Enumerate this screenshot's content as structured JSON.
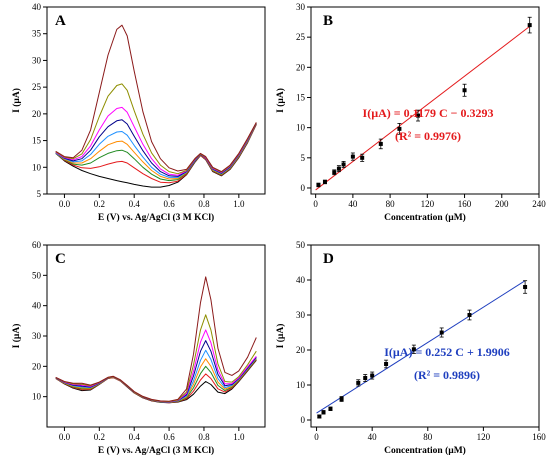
{
  "figure": {
    "panels": [
      "A",
      "B",
      "C",
      "D"
    ]
  },
  "chart_data": [
    {
      "panel": "A",
      "type": "line",
      "xlabel": "E (V) vs. Ag/AgCl (3 M KCl)",
      "ylabel": "I (µA)",
      "xlim": [
        -0.1,
        1.15
      ],
      "ylim": [
        5,
        40
      ],
      "xticks": [
        0.0,
        0.2,
        0.4,
        0.6,
        0.8,
        1.0
      ],
      "yticks": [
        5,
        10,
        15,
        20,
        25,
        30,
        35,
        40
      ],
      "x": [
        -0.05,
        0.0,
        0.05,
        0.1,
        0.15,
        0.2,
        0.25,
        0.3,
        0.33,
        0.36,
        0.4,
        0.45,
        0.5,
        0.55,
        0.6,
        0.65,
        0.7,
        0.75,
        0.78,
        0.81,
        0.85,
        0.9,
        0.95,
        1.0,
        1.05,
        1.1
      ],
      "series": [
        {
          "color": "#000000",
          "values": [
            12.6,
            11.2,
            10.2,
            9.4,
            8.8,
            8.3,
            7.9,
            7.5,
            7.3,
            7.1,
            6.8,
            6.5,
            6.3,
            6.3,
            6.6,
            7.2,
            8.6,
            11.0,
            12.2,
            11.4,
            9.2,
            8.4,
            9.6,
            11.8,
            14.6,
            18.0
          ]
        },
        {
          "color": "#e41a1c",
          "values": [
            12.6,
            11.3,
            10.4,
            9.9,
            9.8,
            10.1,
            10.6,
            11.0,
            11.1,
            10.8,
            9.9,
            8.8,
            7.9,
            7.2,
            7.1,
            7.4,
            8.7,
            11.1,
            12.2,
            11.5,
            9.3,
            8.5,
            9.7,
            11.9,
            14.7,
            18.0
          ]
        },
        {
          "color": "#228b22",
          "values": [
            12.6,
            11.4,
            10.6,
            10.4,
            10.8,
            11.8,
            12.6,
            13.1,
            13.2,
            12.8,
            11.6,
            10.0,
            8.7,
            7.8,
            7.5,
            7.7,
            8.9,
            11.2,
            12.3,
            11.6,
            9.4,
            8.6,
            9.8,
            12.0,
            14.8,
            18.1
          ]
        },
        {
          "color": "#ff8c00",
          "values": [
            12.7,
            11.5,
            10.8,
            10.8,
            11.6,
            13.0,
            14.2,
            14.8,
            14.9,
            14.3,
            12.8,
            11.0,
            9.4,
            8.3,
            7.8,
            7.9,
            9.0,
            11.3,
            12.3,
            11.6,
            9.5,
            8.7,
            9.9,
            12.1,
            14.9,
            18.1
          ]
        },
        {
          "color": "#1e90ff",
          "values": [
            12.7,
            11.6,
            11.0,
            11.2,
            12.4,
            14.3,
            15.8,
            16.6,
            16.7,
            16.0,
            14.1,
            11.9,
            10.0,
            8.7,
            8.1,
            8.1,
            9.1,
            11.3,
            12.4,
            11.7,
            9.6,
            8.8,
            10.0,
            12.2,
            15.0,
            18.2
          ]
        },
        {
          "color": "#00008b",
          "values": [
            12.8,
            11.7,
            11.2,
            11.6,
            13.2,
            15.7,
            17.6,
            18.7,
            18.9,
            18.1,
            15.8,
            13.1,
            10.8,
            9.2,
            8.4,
            8.3,
            9.2,
            11.4,
            12.4,
            11.7,
            9.7,
            8.9,
            10.1,
            12.3,
            15.1,
            18.2
          ]
        },
        {
          "color": "#ff00ff",
          "values": [
            12.8,
            11.8,
            11.4,
            12.0,
            14.0,
            17.0,
            19.6,
            21.0,
            21.2,
            20.3,
            17.6,
            14.3,
            11.6,
            9.7,
            8.7,
            8.5,
            9.3,
            11.5,
            12.5,
            11.8,
            9.8,
            9.0,
            10.2,
            12.4,
            15.2,
            18.3
          ]
        },
        {
          "color": "#8e8e00",
          "values": [
            12.9,
            11.9,
            11.6,
            12.5,
            15.2,
            19.5,
            23.3,
            25.3,
            25.6,
            24.4,
            20.6,
            16.2,
            12.7,
            10.4,
            9.2,
            8.8,
            9.4,
            11.6,
            12.5,
            11.9,
            9.9,
            9.1,
            10.3,
            12.5,
            15.3,
            18.3
          ]
        },
        {
          "color": "#8b1a1a",
          "values": [
            13.0,
            12.0,
            11.8,
            13.2,
            17.0,
            24.0,
            31.0,
            35.8,
            36.6,
            34.6,
            28.0,
            20.4,
            14.8,
            11.6,
            9.9,
            9.3,
            9.6,
            11.7,
            12.6,
            12.0,
            10.0,
            9.2,
            10.4,
            12.6,
            15.4,
            18.4
          ]
        }
      ]
    },
    {
      "panel": "B",
      "type": "scatter",
      "xlabel": "Concentration (µM)",
      "ylabel": "I (µA)",
      "xlim": [
        -5,
        240
      ],
      "ylim": [
        -1,
        30
      ],
      "xticks": [
        0,
        40,
        80,
        120,
        160,
        200,
        240
      ],
      "yticks": [
        0,
        5,
        10,
        15,
        20,
        25,
        30
      ],
      "x": [
        3,
        10,
        20,
        25,
        30,
        40,
        50,
        70,
        90,
        110,
        160,
        230
      ],
      "y": [
        0.5,
        1.0,
        2.6,
        3.2,
        3.9,
        5.2,
        5.0,
        7.3,
        9.8,
        12.0,
        16.2,
        27.0
      ],
      "err": [
        0.3,
        0.3,
        0.4,
        0.5,
        0.5,
        0.6,
        0.6,
        0.8,
        0.9,
        0.9,
        1.0,
        1.3
      ],
      "fit": {
        "slope": 0.1179,
        "intercept": -0.3293,
        "color": "#e41a1c"
      },
      "equation": "I(µA) = 0.1179 C − 0.3293",
      "r2": "(R² = 0.9976)"
    },
    {
      "panel": "C",
      "type": "line",
      "xlabel": "E (V) vs. Ag/AgCl (3 M KCl)",
      "ylabel": "I (µA)",
      "xlim": [
        -0.1,
        1.15
      ],
      "ylim": [
        0,
        60
      ],
      "xticks": [
        0.0,
        0.2,
        0.4,
        0.6,
        0.8,
        1.0
      ],
      "yticks": [
        10,
        20,
        30,
        40,
        50,
        60
      ],
      "x": [
        -0.05,
        0.0,
        0.05,
        0.1,
        0.15,
        0.2,
        0.25,
        0.28,
        0.32,
        0.36,
        0.4,
        0.45,
        0.5,
        0.55,
        0.6,
        0.65,
        0.7,
        0.74,
        0.78,
        0.81,
        0.84,
        0.88,
        0.92,
        0.96,
        1.0,
        1.05,
        1.1
      ],
      "series": [
        {
          "color": "#000000",
          "values": [
            16.0,
            14.2,
            12.8,
            12.0,
            12.2,
            14.0,
            16.0,
            16.3,
            15.2,
            13.2,
            11.2,
            9.6,
            8.6,
            8.1,
            8.0,
            8.2,
            9.0,
            10.8,
            13.5,
            15.0,
            14.0,
            11.5,
            11.0,
            12.5,
            15.0,
            18.5,
            22.0
          ]
        },
        {
          "color": "#e41a1c",
          "values": [
            16.0,
            14.3,
            13.0,
            12.3,
            12.4,
            14.1,
            16.0,
            16.3,
            15.2,
            13.3,
            11.3,
            9.7,
            8.7,
            8.2,
            8.0,
            8.3,
            9.3,
            11.8,
            15.5,
            17.5,
            16.0,
            12.6,
            11.5,
            12.8,
            15.2,
            18.7,
            22.2
          ]
        },
        {
          "color": "#228b22",
          "values": [
            16.1,
            14.4,
            13.2,
            12.6,
            12.6,
            14.2,
            16.1,
            16.4,
            15.3,
            13.4,
            11.4,
            9.8,
            8.8,
            8.2,
            8.1,
            8.4,
            9.6,
            12.9,
            17.6,
            20.0,
            18.0,
            13.7,
            12.0,
            13.1,
            15.4,
            18.9,
            22.4
          ]
        },
        {
          "color": "#ff8c00",
          "values": [
            16.1,
            14.5,
            13.4,
            12.9,
            12.8,
            14.3,
            16.1,
            16.4,
            15.3,
            13.4,
            11.4,
            9.8,
            8.8,
            8.3,
            8.2,
            8.5,
            9.9,
            14.0,
            19.8,
            22.5,
            20.0,
            14.8,
            12.5,
            13.4,
            15.6,
            19.1,
            22.6
          ]
        },
        {
          "color": "#1e90ff",
          "values": [
            16.2,
            14.6,
            13.6,
            13.2,
            13.0,
            14.4,
            16.2,
            16.5,
            15.4,
            13.5,
            11.5,
            9.9,
            8.9,
            8.3,
            8.2,
            8.6,
            10.2,
            15.2,
            22.0,
            25.3,
            22.3,
            16.0,
            13.0,
            13.7,
            15.8,
            19.3,
            22.8
          ]
        },
        {
          "color": "#00008b",
          "values": [
            16.2,
            14.7,
            13.8,
            13.5,
            13.2,
            14.5,
            16.2,
            16.5,
            15.4,
            13.5,
            11.5,
            9.9,
            8.9,
            8.4,
            8.3,
            8.7,
            10.6,
            16.8,
            25.0,
            28.5,
            25.0,
            17.4,
            13.6,
            14.0,
            16.0,
            19.5,
            23.0
          ]
        },
        {
          "color": "#ff00ff",
          "values": [
            16.3,
            14.8,
            14.0,
            13.8,
            13.4,
            14.6,
            16.3,
            16.6,
            15.5,
            13.6,
            11.6,
            10.0,
            9.0,
            8.4,
            8.3,
            8.8,
            11.0,
            18.4,
            28.0,
            32.0,
            27.8,
            18.8,
            14.2,
            14.3,
            16.2,
            19.8,
            23.3
          ]
        },
        {
          "color": "#8e8e00",
          "values": [
            16.3,
            14.9,
            14.2,
            14.1,
            13.6,
            14.7,
            16.3,
            16.6,
            15.5,
            13.6,
            11.6,
            10.0,
            9.0,
            8.5,
            8.4,
            8.9,
            11.5,
            20.5,
            32.0,
            37.0,
            32.0,
            20.8,
            15.0,
            14.8,
            16.6,
            20.5,
            25.0
          ]
        },
        {
          "color": "#8b1a1a",
          "values": [
            16.4,
            15.0,
            14.4,
            14.4,
            13.8,
            14.8,
            16.4,
            16.7,
            15.6,
            13.7,
            11.7,
            10.1,
            9.1,
            8.6,
            8.5,
            9.1,
            12.5,
            24.0,
            41.0,
            49.5,
            42.0,
            26.0,
            18.0,
            17.0,
            18.5,
            23.0,
            29.5
          ]
        }
      ]
    },
    {
      "panel": "D",
      "type": "scatter",
      "xlabel": "Concentration (µM)",
      "ylabel": "I (µA)",
      "xlim": [
        -4,
        160
      ],
      "ylim": [
        -2,
        50
      ],
      "xticks": [
        0,
        40,
        80,
        120,
        160
      ],
      "yticks": [
        0,
        10,
        20,
        30,
        40,
        50
      ],
      "x": [
        2,
        5,
        10,
        18,
        30,
        35,
        40,
        50,
        70,
        90,
        110,
        150
      ],
      "y": [
        1.0,
        2.2,
        3.2,
        6.0,
        10.6,
        12.0,
        12.7,
        16.0,
        20.2,
        25.0,
        30.0,
        38.0
      ],
      "err": [
        0.4,
        0.5,
        0.5,
        0.7,
        0.9,
        1.0,
        1.0,
        1.1,
        1.2,
        1.3,
        1.4,
        1.8
      ],
      "fit": {
        "slope": 0.252,
        "intercept": 1.9906,
        "color": "#1f3fbf"
      },
      "equation": "I(µA) = 0.252 C + 1.9906",
      "r2": "(R² = 0.9896)"
    }
  ]
}
